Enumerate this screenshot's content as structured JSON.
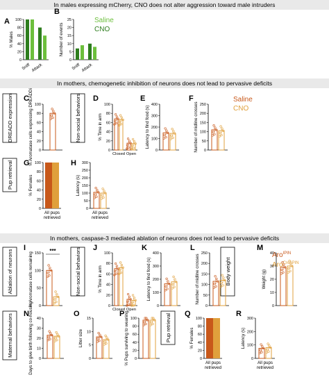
{
  "colors": {
    "saline": "#c8581a",
    "cno": "#e0a03c",
    "green_dark": "#2e7d1e",
    "green_light": "#6cbf3c",
    "banner": "#e9e9e9"
  },
  "sections": {
    "s1": "In males expressing mCherry, CNO does not alter aggression toward male intruders",
    "s2": "In mothers, chemogenetic inhibition of neurons does not lead to pervasive deficits",
    "s3": "In mothers, caspase-3 mediated ablation of neurons does not lead to pervasive deficits"
  },
  "legend_top": {
    "saline": "Saline",
    "cno": "CNO"
  },
  "legend_mid": {
    "saline": "Saline",
    "cno": "CNO"
  },
  "legend_bot": {
    "aro_ipn": "Aro",
    "aro_ipn_sup": "IPIN",
    "aro_cre": "Aro",
    "aro_cre_sup": "Cre/IPIN"
  },
  "side_labels": {
    "dreadd": "DREADD expression",
    "nonsocial_c": "Non-social behaviors",
    "pup_g": "Pup retrieval",
    "ablation": "Ablation of neurons",
    "nonsocial_j": "Non-social behaviors",
    "bodyweight": "Body weight",
    "maternal": "Maternal behaviors",
    "pup_q": "Pup retrieval"
  },
  "panels": {
    "A": {
      "letter": "A",
      "ylabel": "% Males",
      "yticks": [
        "0",
        "20",
        "40",
        "60",
        "80",
        "100"
      ],
      "xcats": [
        "Sniff",
        "Attack"
      ]
    },
    "B": {
      "letter": "B",
      "ylabel": "Number of events",
      "yticks": [
        "0",
        "5",
        "10",
        "15",
        "20",
        "25"
      ],
      "xcats": [
        "Sniff",
        "Attack"
      ]
    },
    "C": {
      "letter": "C",
      "ylabel": "% Aromatase cells expressing DREADDi",
      "yticks": [
        "0",
        "20",
        "40",
        "60",
        "80",
        "100"
      ]
    },
    "D": {
      "letter": "D",
      "ylabel": "% Time in arm",
      "yticks": [
        "0",
        "20",
        "40",
        "60",
        "80",
        "100"
      ],
      "xcats": [
        "Closed",
        "Open"
      ]
    },
    "E": {
      "letter": "E",
      "ylabel": "Latency to find food (s)",
      "yticks": [
        "0",
        "100",
        "200",
        "300",
        "400"
      ]
    },
    "F": {
      "letter": "F",
      "ylabel": "Number of midline crosses",
      "yticks": [
        "0",
        "50",
        "100",
        "150",
        "200",
        "250"
      ]
    },
    "G": {
      "letter": "G",
      "ylabel": "% Females",
      "yticks": [
        "0",
        "20",
        "40",
        "60",
        "80",
        "100"
      ],
      "xlabel": "All pups retrieved"
    },
    "H": {
      "letter": "H",
      "ylabel": "Latency (s)",
      "yticks": [
        "0",
        "50",
        "100",
        "150",
        "200",
        "250",
        "300"
      ],
      "xlabel": "All pups retrieved"
    },
    "I": {
      "letter": "I",
      "ylabel": "% Aromatase cells remaining",
      "yticks": [
        "0",
        "50",
        "100",
        "150"
      ],
      "sig": "***"
    },
    "J": {
      "letter": "J",
      "ylabel": "% Time in arm",
      "yticks": [
        "0",
        "20",
        "40",
        "60",
        "80",
        "100"
      ],
      "xcats": [
        "Closed",
        "Open"
      ]
    },
    "K": {
      "letter": "K",
      "ylabel": "Latency to find food (s)",
      "yticks": [
        "0",
        "100",
        "200",
        "300",
        "400"
      ]
    },
    "L": {
      "letter": "L",
      "ylabel": "Number of midline crosses",
      "yticks": [
        "0",
        "50",
        "100",
        "150",
        "200",
        "250"
      ]
    },
    "M": {
      "letter": "M",
      "ylabel": "Weight (g)",
      "yticks": [
        "0",
        "10",
        "20",
        "30",
        "40"
      ]
    },
    "N": {
      "letter": "N",
      "ylabel": "Days to give birth following co-housing",
      "yticks": [
        "0",
        "10",
        "20",
        "30",
        "40"
      ]
    },
    "O": {
      "letter": "O",
      "ylabel": "Litter size",
      "yticks": [
        "0",
        "5",
        "10",
        "15"
      ]
    },
    "P": {
      "letter": "P",
      "ylabel": "% Pups surviving to weaning",
      "yticks": [
        "0",
        "20",
        "40",
        "60",
        "80",
        "100"
      ]
    },
    "Q": {
      "letter": "Q",
      "ylabel": "% Females",
      "yticks": [
        "0",
        "20",
        "40",
        "60",
        "80",
        "100"
      ],
      "xlabel": "All pups retrieved"
    },
    "R": {
      "letter": "R",
      "ylabel": "Latency (s)",
      "yticks": [
        "0",
        "100",
        "200",
        "300"
      ],
      "xlabel": "All pups retrieved"
    }
  },
  "chart_data": [
    {
      "id": "A",
      "type": "bar",
      "categories": [
        "Sniff",
        "Attack"
      ],
      "series": [
        {
          "name": "Saline",
          "values": [
            100,
            80
          ]
        },
        {
          "name": "CNO",
          "values": [
            100,
            60
          ]
        }
      ],
      "ylabel": "% Males",
      "ylim": [
        0,
        100
      ]
    },
    {
      "id": "B",
      "type": "bar",
      "categories": [
        "Sniff",
        "Attack"
      ],
      "series": [
        {
          "name": "Saline",
          "values": [
            7,
            10
          ]
        },
        {
          "name": "CNO",
          "values": [
            9,
            8
          ]
        }
      ],
      "ylabel": "Number of events",
      "ylim": [
        0,
        25
      ]
    },
    {
      "id": "C",
      "type": "bar",
      "categories": [
        ""
      ],
      "values": [
        80
      ],
      "ylabel": "% Aromatase cells expressing DREADDi",
      "ylim": [
        0,
        100
      ]
    },
    {
      "id": "D",
      "type": "bar",
      "categories": [
        "Closed",
        "Open"
      ],
      "series": [
        {
          "name": "Saline",
          "values": [
            68,
            15
          ]
        },
        {
          "name": "CNO",
          "values": [
            66,
            14
          ]
        }
      ],
      "ylabel": "% Time in arm",
      "ylim": [
        0,
        100
      ]
    },
    {
      "id": "E",
      "type": "bar",
      "categories": [
        ""
      ],
      "series": [
        {
          "name": "Saline",
          "values": [
            150
          ]
        },
        {
          "name": "CNO",
          "values": [
            145
          ]
        }
      ],
      "ylabel": "Latency to find food (s)",
      "ylim": [
        0,
        400
      ]
    },
    {
      "id": "F",
      "type": "bar",
      "categories": [
        ""
      ],
      "series": [
        {
          "name": "Saline",
          "values": [
            110
          ]
        },
        {
          "name": "CNO",
          "values": [
            105
          ]
        }
      ],
      "ylabel": "Number of midline crosses",
      "ylim": [
        0,
        250
      ]
    },
    {
      "id": "G",
      "type": "bar",
      "categories": [
        "All pups retrieved"
      ],
      "series": [
        {
          "name": "Saline",
          "values": [
            100
          ]
        },
        {
          "name": "CNO",
          "values": [
            100
          ]
        }
      ],
      "ylabel": "% Females",
      "ylim": [
        0,
        100
      ]
    },
    {
      "id": "H",
      "type": "bar",
      "categories": [
        "All pups retrieved"
      ],
      "series": [
        {
          "name": "Saline",
          "values": [
            105
          ]
        },
        {
          "name": "CNO",
          "values": [
            100
          ]
        }
      ],
      "ylabel": "Latency (s)",
      "ylim": [
        0,
        300
      ]
    },
    {
      "id": "I",
      "type": "bar",
      "categories": [
        ""
      ],
      "series": [
        {
          "name": "Aro IPIN",
          "values": [
            100
          ]
        },
        {
          "name": "Aro Cre/IPIN",
          "values": [
            25
          ]
        }
      ],
      "ylabel": "% Aromatase cells remaining",
      "ylim": [
        0,
        150
      ]
    },
    {
      "id": "J",
      "type": "bar",
      "categories": [
        "Closed",
        "Open"
      ],
      "series": [
        {
          "name": "Aro IPIN",
          "values": [
            70,
            12
          ]
        },
        {
          "name": "Aro Cre/IPIN",
          "values": [
            72,
            10
          ]
        }
      ],
      "ylabel": "% Time in arm",
      "ylim": [
        0,
        100
      ]
    },
    {
      "id": "K",
      "type": "bar",
      "categories": [
        ""
      ],
      "series": [
        {
          "name": "Aro IPIN",
          "values": [
            165
          ]
        },
        {
          "name": "Aro Cre/IPIN",
          "values": [
            180
          ]
        }
      ],
      "ylabel": "Latency to find food (s)",
      "ylim": [
        0,
        400
      ]
    },
    {
      "id": "L",
      "type": "bar",
      "categories": [
        ""
      ],
      "series": [
        {
          "name": "Aro IPIN",
          "values": [
            115
          ]
        },
        {
          "name": "Aro Cre/IPIN",
          "values": [
            120
          ]
        }
      ],
      "ylabel": "Number of midline crosses",
      "ylim": [
        0,
        250
      ]
    },
    {
      "id": "M",
      "type": "bar",
      "categories": [
        ""
      ],
      "series": [
        {
          "name": "Aro IPIN",
          "values": [
            29
          ]
        },
        {
          "name": "Aro Cre/IPIN",
          "values": [
            30
          ]
        }
      ],
      "ylabel": "Weight (g)",
      "ylim": [
        0,
        40
      ]
    },
    {
      "id": "N",
      "type": "bar",
      "categories": [
        ""
      ],
      "series": [
        {
          "name": "Aro IPIN",
          "values": [
            23
          ]
        },
        {
          "name": "Aro Cre/IPIN",
          "values": [
            22
          ]
        }
      ],
      "ylabel": "Days to give birth following co-housing",
      "ylim": [
        0,
        40
      ]
    },
    {
      "id": "O",
      "type": "bar",
      "categories": [
        ""
      ],
      "series": [
        {
          "name": "Aro IPIN",
          "values": [
            8
          ]
        },
        {
          "name": "Aro Cre/IPIN",
          "values": [
            7
          ]
        }
      ],
      "ylabel": "Litter size",
      "ylim": [
        0,
        15
      ]
    },
    {
      "id": "P",
      "type": "bar",
      "categories": [
        ""
      ],
      "series": [
        {
          "name": "Aro IPIN",
          "values": [
            95
          ]
        },
        {
          "name": "Aro Cre/IPIN",
          "values": [
            95
          ]
        }
      ],
      "ylabel": "% Pups surviving to weaning",
      "ylim": [
        0,
        100
      ]
    },
    {
      "id": "Q",
      "type": "bar",
      "categories": [
        "All pups retrieved"
      ],
      "series": [
        {
          "name": "Aro IPIN",
          "values": [
            100
          ]
        },
        {
          "name": "Aro Cre/IPIN",
          "values": [
            100
          ]
        }
      ],
      "ylabel": "% Females",
      "ylim": [
        0,
        100
      ]
    },
    {
      "id": "R",
      "type": "bar",
      "categories": [
        "All pups retrieved"
      ],
      "series": [
        {
          "name": "Aro IPIN",
          "values": [
            75
          ]
        },
        {
          "name": "Aro Cre/IPIN",
          "values": [
            80
          ]
        }
      ],
      "ylabel": "Latency (s)",
      "ylim": [
        0,
        300
      ]
    }
  ]
}
